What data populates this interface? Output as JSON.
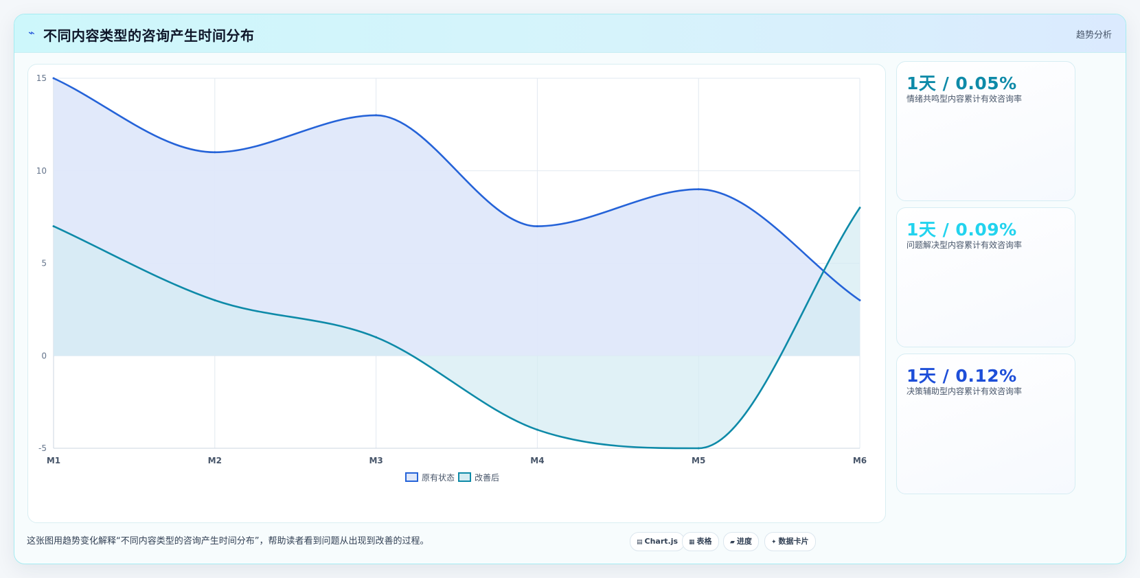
{
  "header": {
    "title": "不同内容类型的咨询产生时间分布",
    "tag": "趋势分析"
  },
  "chart_data": {
    "type": "area",
    "categories": [
      "M1",
      "M2",
      "M3",
      "M4",
      "M5",
      "M6"
    ],
    "series": [
      {
        "name": "原有状态",
        "values": [
          15,
          11,
          13,
          7,
          9,
          3
        ],
        "color": "#2563d8",
        "fill": "#dfe8fa"
      },
      {
        "name": "改善后",
        "values": [
          7,
          3,
          1,
          -4,
          -5,
          8
        ],
        "color": "#0e8aa8",
        "fill": "#d4ecf2"
      }
    ],
    "yticks": [
      "15",
      "10",
      "5",
      "0",
      "-5"
    ],
    "ylim": [
      -5,
      15
    ],
    "grid": true,
    "legend_position": "bottom"
  },
  "stats": [
    {
      "value": "1天 / 0.05%",
      "label": "情绪共鸣型内容累计有效咨询率",
      "color": "#0e8aa8"
    },
    {
      "value": "1天 / 0.09%",
      "label": "问题解决型内容累计有效咨询率",
      "color": "#22d3ee"
    },
    {
      "value": "1天 / 0.12%",
      "label": "决策辅助型内容累计有效咨询率",
      "color": "#1d4ed8"
    }
  ],
  "footer": {
    "text": "这张图用趋势变化解释“不同内容类型的咨询产生时间分布”，帮助读者看到问题从出现到改善的过程。"
  },
  "chips": [
    {
      "label": "Chart.js",
      "icon": "chart-icon"
    },
    {
      "label": "表格",
      "icon": "table-icon"
    },
    {
      "label": "进度",
      "icon": "progress-icon"
    },
    {
      "label": "数据卡片",
      "icon": "sparkle-icon"
    }
  ]
}
